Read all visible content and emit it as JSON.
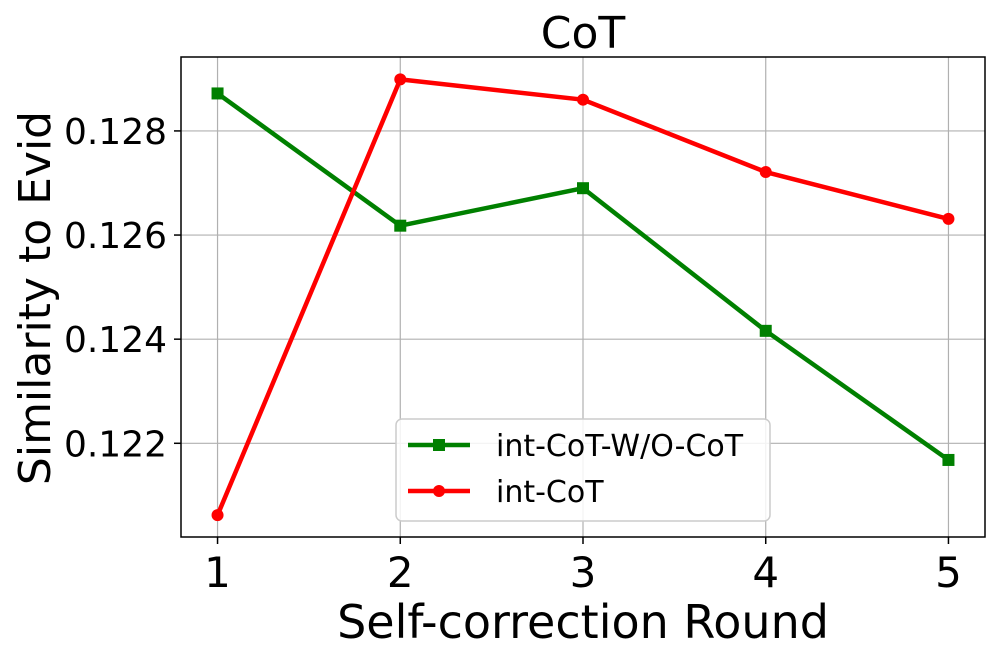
{
  "chart_data": {
    "type": "line",
    "title": "CoT",
    "xlabel": "Self-correction Round",
    "ylabel": "Similarity to Evid",
    "x": [
      1,
      2,
      3,
      4,
      5
    ],
    "xticks": [
      "1",
      "2",
      "3",
      "4",
      "5"
    ],
    "xlim": [
      0.8,
      5.2
    ],
    "yticks": [
      "0.122",
      "0.124",
      "0.126",
      "0.128"
    ],
    "ytick_values": [
      0.122,
      0.124,
      0.126,
      0.128
    ],
    "ylim": [
      0.1202,
      0.12942
    ],
    "grid": true,
    "legend_position": "lower-center",
    "series": [
      {
        "name": "int-CoT-W/O-CoT",
        "color": "#008000",
        "marker": "square",
        "values": [
          0.12872,
          0.12618,
          0.1269,
          0.12416,
          0.12168
        ]
      },
      {
        "name": "int-CoT",
        "color": "#ff0000",
        "marker": "circle",
        "values": [
          0.12062,
          0.12899,
          0.1286,
          0.12721,
          0.12631
        ]
      }
    ]
  }
}
